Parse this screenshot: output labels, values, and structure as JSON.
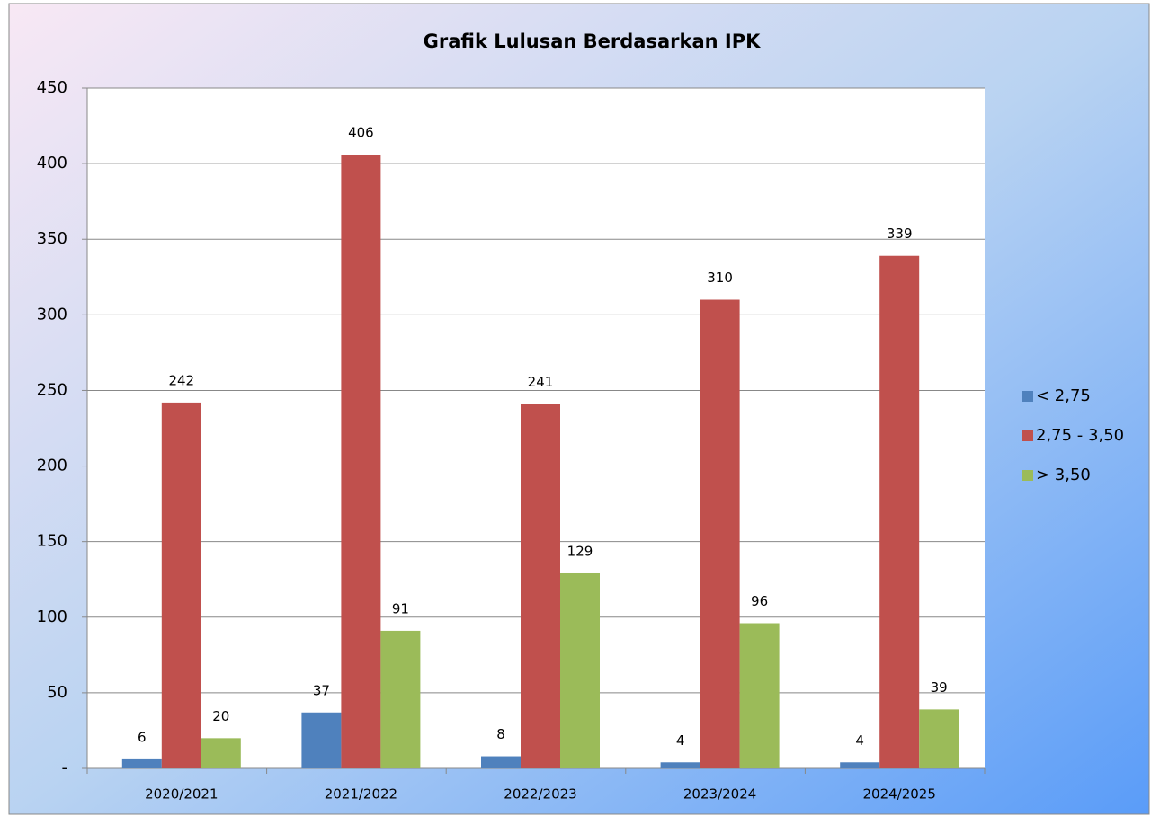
{
  "chart_data": {
    "type": "bar",
    "title": "Grafik Lulusan Berdasarkan IPK",
    "categories": [
      "2020/2021",
      "2021/2022",
      "2022/2023",
      "2023/2024",
      "2024/2025"
    ],
    "series": [
      {
        "name": "< 2,75",
        "color": "#4f81bd",
        "values": [
          6,
          37,
          8,
          4,
          4
        ]
      },
      {
        "name": "2,75 - 3,50",
        "color": "#c0504d",
        "values": [
          242,
          406,
          241,
          310,
          339
        ]
      },
      {
        "name": "> 3,50",
        "color": "#9bbb59",
        "values": [
          20,
          91,
          129,
          96,
          39
        ]
      }
    ],
    "ylim": [
      0,
      450
    ],
    "yticks": [
      {
        "value": 0,
        "label": "-"
      },
      50,
      100,
      150,
      200,
      250,
      300,
      350,
      400,
      450
    ],
    "grid": true,
    "legend": "right"
  }
}
